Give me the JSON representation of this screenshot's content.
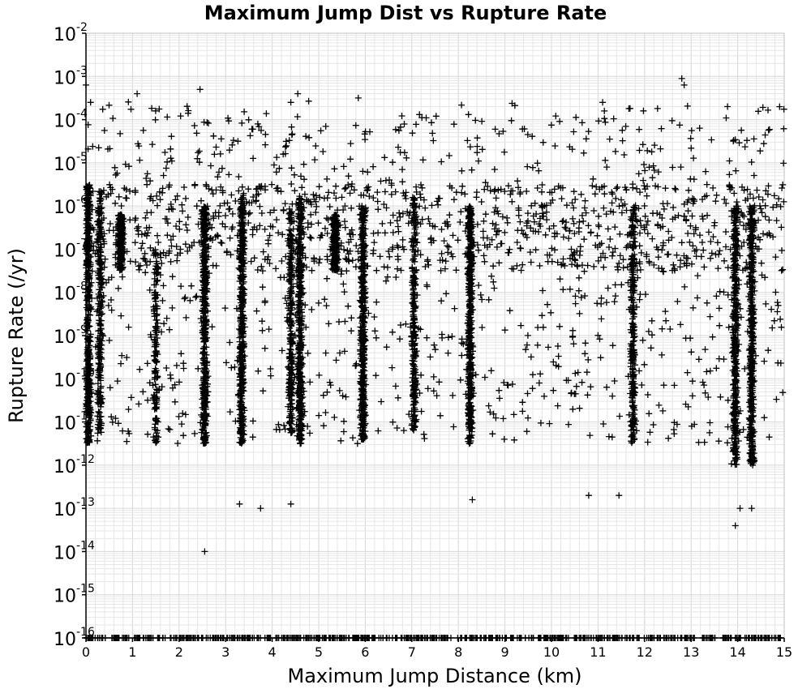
{
  "chart_data": {
    "type": "scatter",
    "title": "Maximum Jump Dist vs Rupture Rate",
    "xlabel": "Maximum Jump Distance (km)",
    "ylabel": "Rupture Rate (/yr)",
    "xlim": [
      0,
      15
    ],
    "ylim_log10": [
      -16,
      -2
    ],
    "y_scale": "log",
    "marker": "plus",
    "marker_color": "#000000",
    "grid": true,
    "x_ticks": [
      "0",
      "1",
      "2",
      "3",
      "4",
      "5",
      "6",
      "7",
      "8",
      "9",
      "10",
      "11",
      "12",
      "13",
      "14",
      "15"
    ],
    "y_ticks": [
      {
        "base": "10",
        "exp": "-2"
      },
      {
        "base": "10",
        "exp": "-3"
      },
      {
        "base": "10",
        "exp": "-4"
      },
      {
        "base": "10",
        "exp": "-5"
      },
      {
        "base": "10",
        "exp": "-6"
      },
      {
        "base": "10",
        "exp": "-7"
      },
      {
        "base": "10",
        "exp": "-8"
      },
      {
        "base": "10",
        "exp": "-9"
      },
      {
        "base": "10",
        "exp": "-10"
      },
      {
        "base": "10",
        "exp": "-11"
      },
      {
        "base": "10",
        "exp": "-12"
      },
      {
        "base": "10",
        "exp": "-13"
      },
      {
        "base": "10",
        "exp": "-14"
      },
      {
        "base": "10",
        "exp": "-15"
      },
      {
        "base": "10",
        "exp": "-16"
      }
    ],
    "dense_clusters": [
      {
        "x": 0.05,
        "log_rate_min": -11.5,
        "log_rate_max": -5.5,
        "density": "very high"
      },
      {
        "x": 0.3,
        "log_rate_min": -11.3,
        "log_rate_max": -5.6,
        "density": "high"
      },
      {
        "x": 0.75,
        "log_rate_min": -7.5,
        "log_rate_max": -6.2,
        "density": "high"
      },
      {
        "x": 1.5,
        "log_rate_min": -11.5,
        "log_rate_max": -7.0,
        "density": "medium"
      },
      {
        "x": 2.55,
        "log_rate_min": -11.5,
        "log_rate_max": -6.0,
        "density": "very high"
      },
      {
        "x": 3.35,
        "log_rate_min": -11.5,
        "log_rate_max": -5.8,
        "density": "very high"
      },
      {
        "x": 4.4,
        "log_rate_min": -11.3,
        "log_rate_max": -6.0,
        "density": "high"
      },
      {
        "x": 4.6,
        "log_rate_min": -11.5,
        "log_rate_max": -5.8,
        "density": "very high"
      },
      {
        "x": 5.35,
        "log_rate_min": -7.5,
        "log_rate_max": -6.2,
        "density": "high"
      },
      {
        "x": 5.95,
        "log_rate_min": -11.5,
        "log_rate_max": -6.0,
        "density": "very high"
      },
      {
        "x": 7.05,
        "log_rate_min": -11.2,
        "log_rate_max": -5.8,
        "density": "high"
      },
      {
        "x": 8.25,
        "log_rate_min": -11.5,
        "log_rate_max": -6.0,
        "density": "very high"
      },
      {
        "x": 11.75,
        "log_rate_min": -11.5,
        "log_rate_max": -6.0,
        "density": "high"
      },
      {
        "x": 13.95,
        "log_rate_min": -12.0,
        "log_rate_max": -6.0,
        "density": "very high"
      },
      {
        "x": 14.3,
        "log_rate_min": -12.0,
        "log_rate_max": -6.0,
        "density": "very high"
      }
    ],
    "background_density_band": {
      "log_rate_min": -7.5,
      "log_rate_max": -5.5
    },
    "floor_row_log_rate": -16,
    "outliers": [
      {
        "x": 0.0,
        "log_rate": -3.2
      },
      {
        "x": 0.1,
        "log_rate": -3.6
      },
      {
        "x": 1.1,
        "log_rate": -3.4
      },
      {
        "x": 2.45,
        "log_rate": -3.3
      },
      {
        "x": 4.55,
        "log_rate": -3.4
      },
      {
        "x": 4.4,
        "log_rate": -3.6
      },
      {
        "x": 5.85,
        "log_rate": -3.5
      },
      {
        "x": 12.8,
        "log_rate": -3.05
      },
      {
        "x": 12.85,
        "log_rate": -3.2
      },
      {
        "x": 11.1,
        "log_rate": -3.6
      },
      {
        "x": 14.9,
        "log_rate": -3.7
      },
      {
        "x": 2.55,
        "log_rate": -14.0
      },
      {
        "x": 13.95,
        "log_rate": -13.4
      },
      {
        "x": 14.05,
        "log_rate": -13.0
      },
      {
        "x": 3.3,
        "log_rate": -12.9
      },
      {
        "x": 3.75,
        "log_rate": -13.0
      },
      {
        "x": 4.4,
        "log_rate": -12.9
      },
      {
        "x": 8.3,
        "log_rate": -12.8
      },
      {
        "x": 11.45,
        "log_rate": -12.7
      },
      {
        "x": 10.8,
        "log_rate": -12.7
      },
      {
        "x": 14.3,
        "log_rate": -13.0
      }
    ]
  }
}
